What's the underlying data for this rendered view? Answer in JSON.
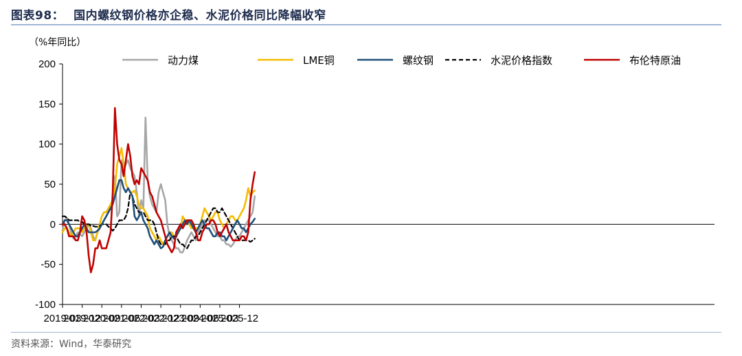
{
  "header": {
    "figure_label": "图表98：",
    "title": "国内螺纹钢价格亦企稳、水泥价格同比降幅收窄"
  },
  "footer": {
    "source": "资料来源：Wind，华泰研究"
  },
  "chart_data": {
    "type": "line",
    "unit_label": "（%年同比）",
    "ylim": [
      -100,
      200
    ],
    "yticks": [
      -100,
      -50,
      0,
      50,
      100,
      150,
      200
    ],
    "xlabels": [
      "2019-03",
      "2019-12",
      "2020-09",
      "2021-06",
      "2022-03",
      "2022-12",
      "2023-09",
      "2024-06",
      "2025-03",
      "2025-12"
    ],
    "x_start": "2019-03",
    "legend_position": "top",
    "grid": false,
    "series": [
      {
        "name": "动力煤",
        "color": "#a6a6a6",
        "dash": "solid",
        "values": [
          -8,
          5,
          8,
          0,
          -10,
          -18,
          -15,
          -10,
          -12,
          -15,
          -10,
          -5,
          0,
          -5,
          -15,
          -20,
          -10,
          -5,
          0,
          5,
          10,
          15,
          25,
          30,
          60,
          10,
          15,
          80,
          70,
          75,
          80,
          70,
          65,
          60,
          40,
          10,
          30,
          20,
          133,
          55,
          35,
          25,
          20,
          15,
          40,
          50,
          40,
          30,
          0,
          -15,
          -20,
          -25,
          -30,
          -30,
          -35,
          -35,
          -28,
          -20,
          -15,
          -10,
          -15,
          -20,
          -10,
          -5,
          0,
          5,
          5,
          5,
          0,
          -5,
          -10,
          -15,
          -15,
          -20,
          -20,
          -25,
          -25,
          -28,
          -25,
          -20,
          -15,
          -15,
          -10,
          -5,
          0,
          5,
          10,
          15,
          35
        ]
      },
      {
        "name": "LME铜",
        "color": "#f5bc00",
        "dash": "solid",
        "values": [
          -10,
          -5,
          -5,
          -10,
          -15,
          -10,
          -5,
          -5,
          -5,
          -10,
          -5,
          0,
          0,
          -10,
          -20,
          -20,
          -10,
          0,
          10,
          15,
          15,
          20,
          25,
          30,
          45,
          75,
          85,
          95,
          75,
          50,
          45,
          40,
          40,
          42,
          35,
          25,
          20,
          20,
          15,
          10,
          -5,
          -10,
          -15,
          -20,
          -15,
          -20,
          -25,
          -20,
          -15,
          -10,
          -10,
          -15,
          -15,
          -10,
          -5,
          10,
          5,
          5,
          0,
          -5,
          -5,
          -5,
          -5,
          0,
          10,
          20,
          15,
          10,
          5,
          10,
          15,
          15,
          5,
          0,
          -5,
          0,
          5,
          10,
          10,
          5,
          5,
          10,
          15,
          20,
          30,
          45,
          35,
          40,
          42
        ]
      },
      {
        "name": "螺纹钢",
        "color": "#1f4e79",
        "dash": "solid",
        "values": [
          0,
          5,
          5,
          0,
          -5,
          -10,
          -15,
          -15,
          -10,
          -5,
          0,
          -5,
          -10,
          -10,
          -10,
          -10,
          -8,
          -5,
          0,
          5,
          10,
          15,
          20,
          25,
          35,
          45,
          55,
          55,
          45,
          40,
          45,
          40,
          35,
          10,
          5,
          10,
          15,
          5,
          0,
          -5,
          -15,
          -20,
          -25,
          -20,
          -25,
          -30,
          -28,
          -20,
          -15,
          -10,
          -15,
          -18,
          -15,
          -10,
          -5,
          0,
          5,
          0,
          5,
          0,
          -5,
          -10,
          -5,
          0,
          5,
          0,
          -5,
          -5,
          -10,
          -15,
          -15,
          -10,
          -10,
          -15,
          -15,
          -20,
          -15,
          -10,
          -5,
          0,
          5,
          0,
          -5,
          -5,
          -10,
          -5,
          0,
          3,
          7
        ]
      },
      {
        "name": "水泥价格指数",
        "color": "#000000",
        "dash": "dashed",
        "values": [
          10,
          10,
          8,
          5,
          5,
          5,
          5,
          5,
          3,
          3,
          0,
          0,
          0,
          -2,
          -2,
          -3,
          -3,
          -2,
          0,
          0,
          0,
          -3,
          -5,
          -8,
          -5,
          0,
          5,
          5,
          5,
          10,
          20,
          40,
          35,
          25,
          20,
          15,
          15,
          15,
          10,
          5,
          5,
          5,
          0,
          -10,
          -20,
          -25,
          -25,
          -25,
          -20,
          -20,
          -15,
          -15,
          -15,
          -20,
          -25,
          -25,
          -28,
          -30,
          -25,
          -20,
          -20,
          -15,
          -15,
          -10,
          -5,
          0,
          5,
          10,
          15,
          20,
          20,
          15,
          15,
          20,
          15,
          10,
          5,
          0,
          -5,
          -10,
          -15,
          -20,
          -20,
          -20,
          -20,
          -20,
          -22,
          -20,
          -18
        ]
      },
      {
        "name": "布伦特原油",
        "color": "#c00000",
        "dash": "solid",
        "values": [
          0,
          0,
          -5,
          -15,
          -15,
          -15,
          -20,
          -20,
          -10,
          10,
          5,
          -10,
          -40,
          -60,
          -50,
          -30,
          -30,
          -20,
          -30,
          -30,
          -30,
          -20,
          -10,
          40,
          145,
          100,
          80,
          75,
          60,
          80,
          100,
          85,
          60,
          50,
          55,
          50,
          70,
          65,
          60,
          55,
          40,
          35,
          25,
          15,
          10,
          5,
          -5,
          -15,
          -25,
          -30,
          -35,
          -30,
          -10,
          -5,
          0,
          -5,
          0,
          5,
          5,
          5,
          0,
          -10,
          -20,
          -20,
          -10,
          -5,
          0,
          0,
          5,
          5,
          0,
          -10,
          -15,
          -10,
          -5,
          0,
          -10,
          -15,
          -20,
          -20,
          -20,
          -20,
          -15,
          -15,
          -20,
          -10,
          30,
          50,
          65
        ]
      }
    ]
  }
}
